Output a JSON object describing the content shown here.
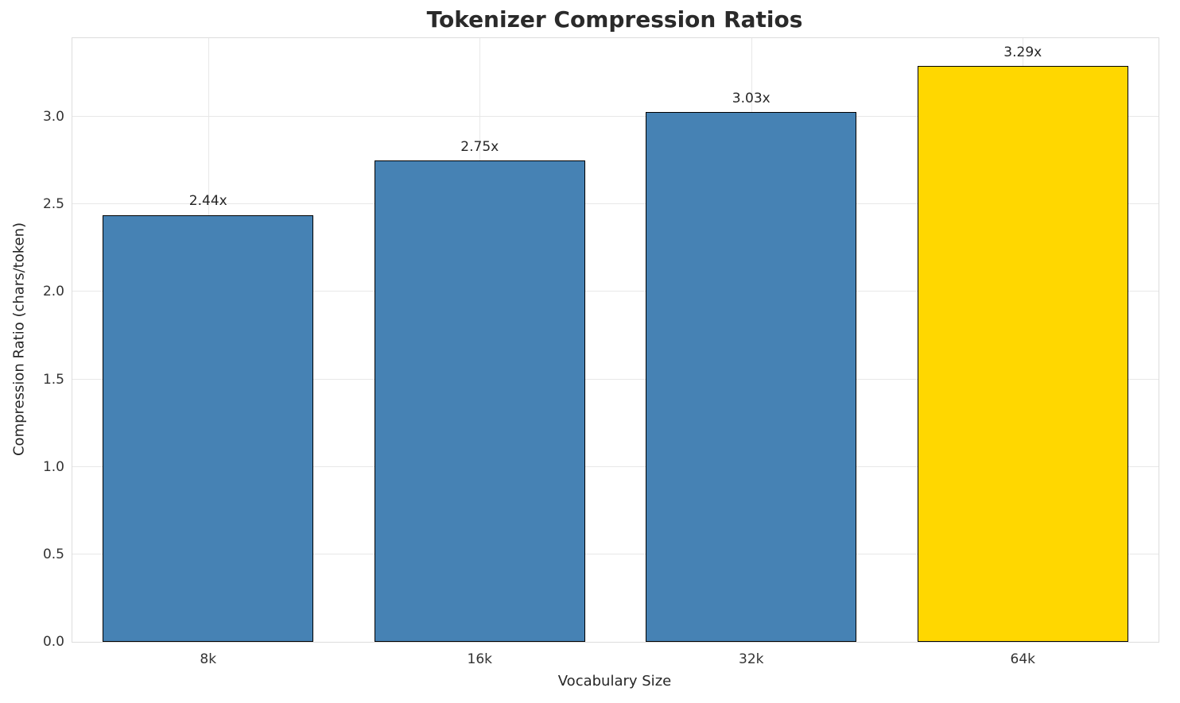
{
  "title": "Tokenizer Compression Ratios",
  "chart_data": {
    "type": "bar",
    "title": "Tokenizer Compression Ratios",
    "xlabel": "Vocabulary Size",
    "ylabel": "Compression Ratio (chars/token)",
    "categories": [
      "8k",
      "16k",
      "32k",
      "64k"
    ],
    "values": [
      2.44,
      2.75,
      3.03,
      3.29
    ],
    "value_labels": [
      "2.44x",
      "2.75x",
      "3.03x",
      "3.29x"
    ],
    "ylim": [
      0,
      3.45
    ],
    "yticks": [
      0.0,
      0.5,
      1.0,
      1.5,
      2.0,
      2.5,
      3.0
    ],
    "ytick_labels": [
      "0.0",
      "0.5",
      "1.0",
      "1.5",
      "2.0",
      "2.5",
      "3.0"
    ],
    "grid": true,
    "legend": "none",
    "bar_colors": [
      "#4682B4",
      "#4682B4",
      "#4682B4",
      "#FFD700"
    ],
    "bar_edge_color": "#000000",
    "colors": {
      "grid": "#e8e8e8",
      "title": "#2a2a2a",
      "tick_text": "#333333",
      "label_text": "#262626",
      "highlight": "#FFD700",
      "base": "#4682B4"
    }
  }
}
